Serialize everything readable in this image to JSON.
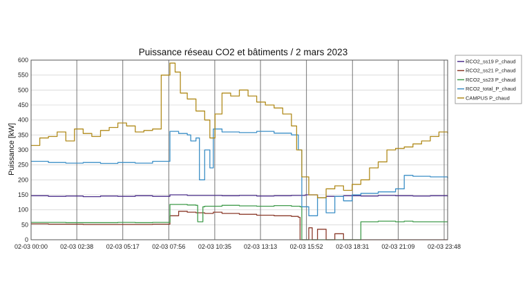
{
  "chart_data": {
    "type": "line",
    "title": "Puissance réseau CO2 et bâtiments / 2 mars 2023",
    "xlabel": "",
    "ylabel": "Puissance [kW]",
    "ylim": [
      0,
      600
    ],
    "yticks": [
      0,
      50,
      100,
      150,
      200,
      250,
      300,
      350,
      400,
      450,
      500,
      550,
      600
    ],
    "xlim": [
      0,
      24
    ],
    "xtick_hours": [
      0,
      2.633,
      5.283,
      7.933,
      10.583,
      13.217,
      15.867,
      18.517,
      21.15,
      23.8
    ],
    "xtick_labels": [
      "02-03 00:00",
      "02-03 02:38",
      "02-03 05:17",
      "02-03 07:56",
      "02-03 10:35",
      "02-03 13:13",
      "02-03 15:52",
      "02-03 18:31",
      "02-03 21:09",
      "02-03 23:48"
    ],
    "grid": true,
    "legend_position": "right",
    "series": [
      {
        "name": "RCO2_ss19 P_chaud",
        "color": "#4b2d8a",
        "x": [
          0,
          1,
          2,
          3,
          4,
          5,
          6,
          7,
          8,
          9,
          10,
          11,
          12,
          13,
          14,
          15,
          15.8,
          16.5,
          17,
          18,
          19,
          20,
          21,
          22,
          23,
          24
        ],
        "values": [
          147,
          145,
          146,
          144,
          146,
          145,
          147,
          145,
          150,
          148,
          148,
          147,
          148,
          146,
          147,
          148,
          150,
          140,
          145,
          147,
          146,
          148,
          147,
          146,
          147,
          145
        ]
      },
      {
        "name": "RCO2_ss21 P_chaud",
        "color": "#8b3a2a",
        "x": [
          0,
          1,
          2,
          3,
          4,
          5,
          6,
          7,
          7.9,
          8,
          8.5,
          9,
          9.5,
          10,
          10.5,
          11,
          12,
          13,
          14,
          15,
          15.4,
          15.5,
          16,
          16.2,
          16.5,
          17,
          17.5,
          18,
          24
        ],
        "values": [
          53,
          52,
          52,
          51,
          51,
          51,
          51,
          52,
          52,
          80,
          95,
          92,
          90,
          88,
          92,
          88,
          85,
          82,
          80,
          78,
          75,
          0,
          40,
          0,
          35,
          0,
          20,
          0,
          0
        ]
      },
      {
        "name": "RCO2_ss23 P_chaud",
        "color": "#3f9b4a",
        "x": [
          0,
          1,
          2,
          3,
          4,
          5,
          6,
          7,
          7.9,
          8,
          9,
          9.5,
          9.6,
          9.9,
          10,
          11,
          12,
          13,
          14,
          15,
          15.5,
          15.6,
          16,
          17,
          17.5,
          18,
          18.5,
          19,
          20,
          20.5,
          21,
          21.5,
          22,
          23,
          24
        ],
        "values": [
          58,
          58,
          57,
          57,
          57,
          58,
          57,
          58,
          58,
          118,
          116,
          115,
          60,
          110,
          112,
          115,
          113,
          112,
          114,
          112,
          110,
          0,
          0,
          0,
          0,
          0,
          0,
          60,
          62,
          62,
          60,
          62,
          60,
          60,
          60
        ]
      },
      {
        "name": "RCO2_total_P_chaud",
        "color": "#3a8ec6",
        "x": [
          0,
          1,
          2,
          3,
          4,
          5,
          6,
          7,
          7.9,
          8,
          8.5,
          9,
          9.2,
          9.5,
          9.7,
          10,
          10.3,
          10.5,
          11,
          12,
          13,
          14,
          15,
          15.4,
          15.6,
          16,
          16.5,
          17,
          17.5,
          18,
          18.5,
          19,
          20,
          21,
          21.5,
          22,
          23,
          24
        ],
        "values": [
          262,
          258,
          256,
          258,
          255,
          258,
          256,
          262,
          262,
          362,
          355,
          350,
          330,
          340,
          200,
          300,
          240,
          370,
          360,
          358,
          362,
          356,
          350,
          300,
          110,
          80,
          140,
          90,
          145,
          130,
          150,
          155,
          160,
          170,
          215,
          212,
          210,
          205
        ]
      },
      {
        "name": "CAMPUS P_chaud",
        "color": "#b08a1a",
        "x": [
          0,
          0.5,
          1,
          1.5,
          2,
          2.5,
          3,
          3.5,
          4,
          4.5,
          5,
          5.5,
          6,
          6.5,
          7,
          7.5,
          8,
          8.3,
          8.6,
          9,
          9.5,
          10,
          10.3,
          10.6,
          11,
          11.5,
          12,
          12.5,
          13,
          13.5,
          14,
          14.5,
          15,
          15.3,
          15.6,
          16,
          16.5,
          17,
          17.5,
          18,
          18.5,
          19,
          19.5,
          20,
          20.5,
          21,
          21.5,
          22,
          22.5,
          23,
          23.5,
          24
        ],
        "values": [
          315,
          340,
          345,
          360,
          330,
          370,
          355,
          345,
          365,
          375,
          390,
          380,
          360,
          365,
          370,
          550,
          590,
          560,
          490,
          470,
          430,
          400,
          340,
          420,
          490,
          480,
          500,
          480,
          460,
          450,
          440,
          420,
          380,
          300,
          210,
          150,
          140,
          170,
          180,
          165,
          185,
          200,
          240,
          260,
          300,
          305,
          310,
          320,
          330,
          345,
          360,
          355
        ]
      }
    ]
  }
}
